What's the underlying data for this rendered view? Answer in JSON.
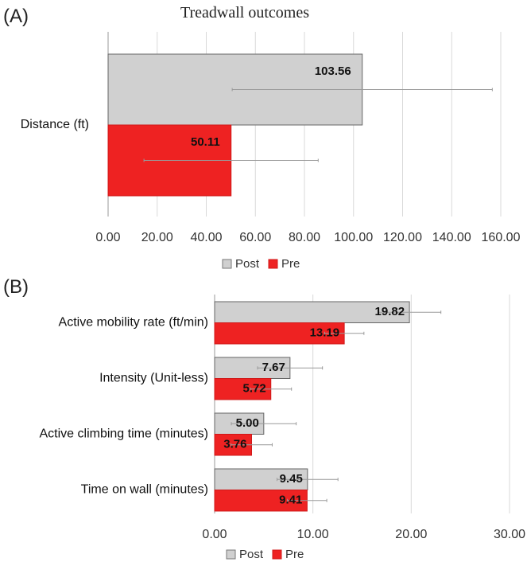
{
  "chart_data": [
    {
      "panel": "(A)",
      "type": "bar",
      "orientation": "horizontal",
      "title": "Treadwall outcomes",
      "categories": [
        "Distance (ft)"
      ],
      "series": [
        {
          "name": "Post",
          "color": "#d0d0d0",
          "values": [
            103.56
          ],
          "error": [
            53.0
          ],
          "labels": [
            "103.56"
          ]
        },
        {
          "name": "Pre",
          "color": "#ee2222",
          "values": [
            50.11
          ],
          "error": [
            35.5
          ],
          "labels": [
            "50.11"
          ]
        }
      ],
      "xlim": [
        0,
        160
      ],
      "xticks": [
        "0.00",
        "20.00",
        "40.00",
        "60.00",
        "80.00",
        "100.00",
        "120.00",
        "140.00",
        "160.00"
      ],
      "grid": true,
      "legend": "bottom"
    },
    {
      "panel": "(B)",
      "type": "bar",
      "orientation": "horizontal",
      "title": "",
      "categories": [
        "Active mobility rate (ft/min)",
        "Intensity (Unit-less)",
        "Active climbing time (minutes)",
        "Time on wall (minutes)"
      ],
      "series": [
        {
          "name": "Post",
          "color": "#d0d0d0",
          "values": [
            19.82,
            7.67,
            5.0,
            9.45
          ],
          "error": [
            3.2,
            3.3,
            3.3,
            3.1
          ],
          "labels": [
            "19.82",
            "7.67",
            "5.00",
            "9.45"
          ]
        },
        {
          "name": "Pre",
          "color": "#ee2222",
          "values": [
            13.19,
            5.72,
            3.76,
            9.41
          ],
          "error": [
            2.0,
            2.1,
            2.1,
            2.0
          ],
          "labels": [
            "13.19",
            "5.72",
            "3.76",
            "9.41"
          ]
        }
      ],
      "xlim": [
        0,
        30
      ],
      "xticks": [
        "0.00",
        "10.00",
        "20.00",
        "30.00"
      ],
      "grid": true,
      "legend": "bottom"
    }
  ]
}
